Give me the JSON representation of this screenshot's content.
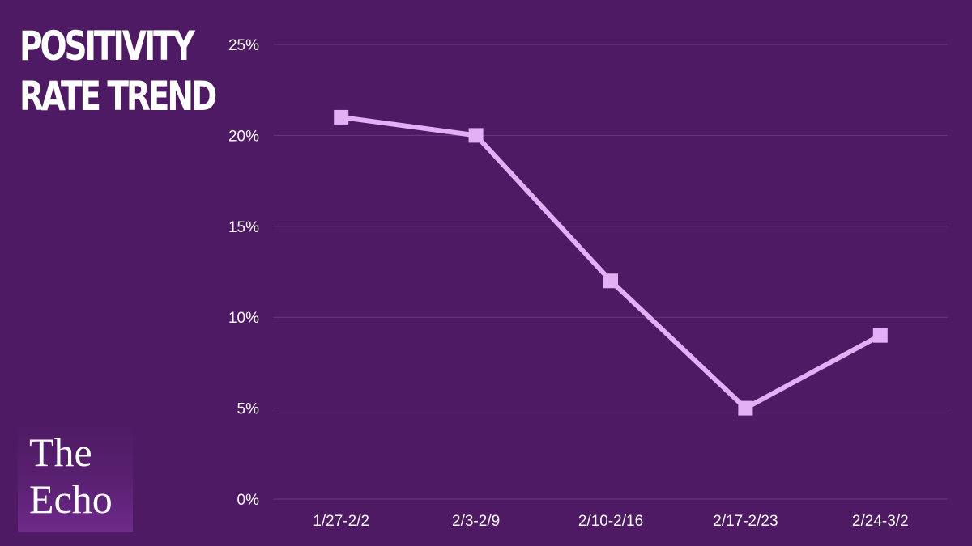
{
  "title": {
    "line1": "POSITIVITY",
    "line2": "RATE TREND"
  },
  "logo": {
    "line1": "The",
    "line2": "Echo"
  },
  "colors": {
    "background": "#4e1a63",
    "line": "#e3b0f5",
    "gridline": "#6a3a7e",
    "text": "#ffffff"
  },
  "chart_data": {
    "type": "line",
    "categories": [
      "1/27-2/2",
      "2/3-2/9",
      "2/10-2/16",
      "2/17-2/23",
      "2/24-3/2"
    ],
    "series": [
      {
        "values": [
          21,
          20,
          12,
          5,
          9
        ]
      }
    ],
    "ylim": [
      0,
      25
    ],
    "yticks": [
      "0%",
      "5%",
      "10%",
      "15%",
      "20%",
      "25%"
    ],
    "ytick_values": [
      0,
      5,
      10,
      15,
      20,
      25
    ],
    "grid": true,
    "legend": "none",
    "marker": "square"
  }
}
